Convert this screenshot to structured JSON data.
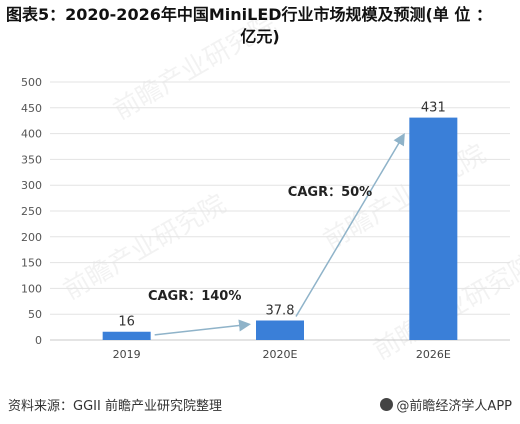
{
  "title": "图表5：2020-2026年中国MiniLED行业市场规模及预测(单 位：亿元)",
  "title_line1": "图表5：2020-2026年中国MiniLED行业市场规模及预测(单 位 ：",
  "title_line2": "亿元)",
  "source": "资料来源：GGII 前瞻产业研究院整理",
  "brand": "@前瞻经济学人APP",
  "watermark": "前瞻产业研究院",
  "colors": {
    "bar": "#3a7fd8",
    "arrow": "#8fb3c9",
    "grid": "#e3e3e3"
  },
  "chart_data": {
    "type": "bar",
    "categories": [
      "2019",
      "2020E",
      "2026E"
    ],
    "values": [
      16,
      37.8,
      431
    ],
    "data_labels": [
      "16",
      "37.8",
      "431"
    ],
    "ylim": [
      0,
      500
    ],
    "yticks": [
      0,
      50,
      100,
      150,
      200,
      250,
      300,
      350,
      400,
      450,
      500
    ],
    "grid": true,
    "annotations": [
      {
        "text": "CAGR：140%",
        "from": "2019",
        "to": "2020E"
      },
      {
        "text": "CAGR：50%",
        "from": "2020E",
        "to": "2026E"
      }
    ]
  }
}
